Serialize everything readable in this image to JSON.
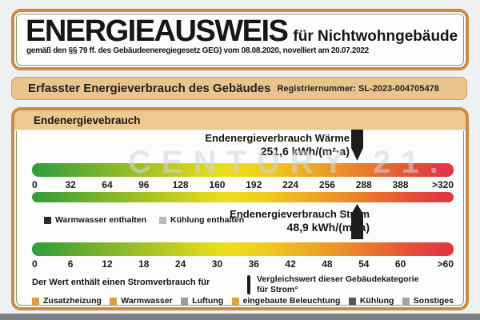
{
  "watermark": "CENTURY 21.",
  "header": {
    "title": "ENERGIEAUSWEIS",
    "title_suffix": "für Nichtwohngebäude",
    "subtitle": "gemäß den §§ 79 ff. des Gebäudeeneregiegesetz GEG) vom 08.08.2020, novelliert am 20.07.2022"
  },
  "registration": {
    "label": "Erfasster Energieverbrauch des Gebäudes",
    "number": "Registriernummer: SL-2023-004705478"
  },
  "section": {
    "title": "Endenergievebrauch",
    "waerme": {
      "label": "Endenergieverbrauch Wärme",
      "value": "251,6 kWh/(m²·a)"
    },
    "strom": {
      "label": "Endenergieverbrauch Strom",
      "value": "48,9 kWh/(m²·a)"
    },
    "scale_waerme": [
      "0",
      "32",
      "64",
      "96",
      "128",
      "160",
      "192",
      "224",
      "256",
      "288",
      "388",
      ">320"
    ],
    "scale_strom": [
      "0",
      "6",
      "12",
      "18",
      "24",
      "30",
      "36",
      "42",
      "48",
      "54",
      "60",
      ">60"
    ],
    "legend_included": [
      {
        "label": "Warmwasser enthalten",
        "color": "#2b2b2b"
      },
      {
        "label": "Kühlung enthalten",
        "color": "#b9b9b9"
      }
    ],
    "strom_note": "Der Wert enthält einen Stromverbrauch für",
    "vergleich_line1": "Vergleichswert dieser Gebäudekategorie",
    "vergleich_line2": "für Strom°",
    "legend_bottom": [
      {
        "label": "Zusatzheizung",
        "color": "#e69a3e"
      },
      {
        "label": "Warmwasser",
        "color": "#e69a3e"
      },
      {
        "label": "Luftung",
        "color": "#9b9b9b"
      },
      {
        "label": "eingebaute Beleuchtung",
        "color": "#dfa23c"
      },
      {
        "label": "Kühlung",
        "color": "#54595e"
      },
      {
        "label": "Sonstiges",
        "color": "#a5a5a5"
      }
    ]
  },
  "colors": {
    "frame_orange": "#cd8a41",
    "band_tan": "#e9c48d",
    "scale_green": "#2e9c3c",
    "scale_yellow": "#ecdf1b",
    "scale_red": "#e13944",
    "arrow_black": "#1c1c1c",
    "page_background": "#eef0f1"
  },
  "chart_data": {
    "type": "bar",
    "title": "Endenergievebrauch",
    "scales": [
      {
        "name": "Endenergieverbrauch Wärme",
        "value_kwh_m2a": 251.6,
        "axis_ticks": [
          0,
          32,
          64,
          96,
          128,
          160,
          192,
          224,
          256,
          288,
          388
        ],
        "axis_max_label": ">320"
      },
      {
        "name": "Endenergieverbrauch Strom",
        "value_kwh_m2a": 48.9,
        "axis_ticks": [
          0,
          6,
          12,
          18,
          24,
          30,
          36,
          42,
          48,
          54,
          60
        ],
        "axis_max_label": ">60"
      }
    ]
  }
}
